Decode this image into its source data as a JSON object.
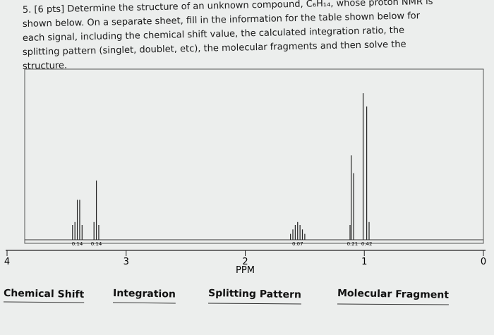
{
  "question": {
    "lines": [
      "5. [6 pts] Determine the structure of an unknown compound, C₆H₁₄, whose proton NMR is",
      "shown below.  On a separate sheet, fill in the information for the table shown below for",
      "each signal, including the chemical shift value, the calculated integration ratio, the",
      "splitting pattern (singlet, doublet, etc), the molecular fragments and then solve the",
      "structure."
    ]
  },
  "chart_data": {
    "type": "nmr",
    "xlabel": "PPM",
    "xlim": [
      4,
      0
    ],
    "xticks": [
      4,
      3,
      2,
      1,
      0
    ],
    "ylim": [
      0,
      100
    ],
    "series": [
      {
        "color": "#222222",
        "x": [
          3.45,
          3.43,
          3.41,
          3.39,
          3.37,
          3.27,
          3.25,
          3.23,
          1.62,
          1.6,
          1.58,
          1.56,
          1.54,
          1.52,
          1.5,
          1.12,
          1.11,
          1.09,
          1.01,
          0.98,
          0.96
        ],
        "values": [
          10,
          12,
          27,
          27,
          10,
          12,
          40,
          10,
          4,
          7,
          10,
          12,
          10,
          7,
          4,
          10,
          57,
          45,
          99,
          90,
          12
        ]
      }
    ],
    "integrations": {
      "x": [
        3.41,
        3.25,
        1.56,
        1.1,
        0.98
      ],
      "values": [
        0.14,
        0.14,
        0.07,
        0.21,
        0.42
      ]
    }
  },
  "table": {
    "headers": [
      "Chemical Shift",
      "Integration",
      "Splitting Pattern",
      "Molecular Fragment"
    ]
  }
}
